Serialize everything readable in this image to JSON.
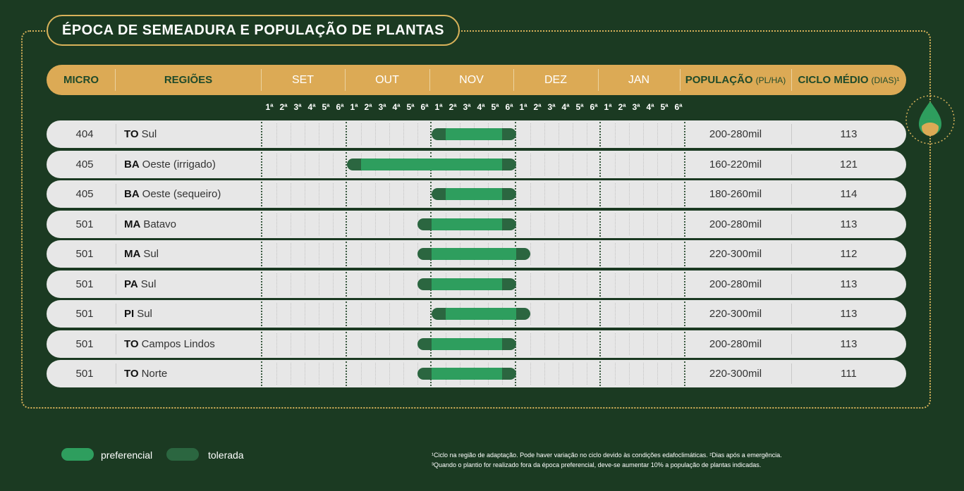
{
  "title": "ÉPOCA DE SEMEADURA E POPULAÇÃO DE PLANTAS",
  "header": {
    "micro": "MICRO",
    "regioes": "REGIÕES",
    "months": [
      "SET",
      "OUT",
      "NOV",
      "DEZ",
      "JAN"
    ],
    "populacao": "POPULAÇÃO",
    "populacao_unit": "(PL/HA)",
    "ciclo": "CICLO MÉDIO",
    "ciclo_unit": "(DIAS)¹"
  },
  "week_labels": [
    "1ª",
    "2ª",
    "3ª",
    "4ª",
    "5ª",
    "6ª"
  ],
  "rows": [
    {
      "micro": "404",
      "state": "TO",
      "region": "Sul",
      "populacao": "200-280mil",
      "ciclo": "113",
      "tolerated": [
        12,
        18
      ],
      "preferred": [
        13,
        17
      ]
    },
    {
      "micro": "405",
      "state": "BA",
      "region": "Oeste (irrigado)",
      "populacao": "160-220mil",
      "ciclo": "121",
      "tolerated": [
        6,
        18
      ],
      "preferred": [
        7,
        17
      ]
    },
    {
      "micro": "405",
      "state": "BA",
      "region": "Oeste (sequeiro)",
      "populacao": "180-260mil",
      "ciclo": "114",
      "tolerated": [
        12,
        18
      ],
      "preferred": [
        13,
        17
      ]
    },
    {
      "micro": "501",
      "state": "MA",
      "region": "Batavo",
      "populacao": "200-280mil",
      "ciclo": "113",
      "tolerated": [
        11,
        18
      ],
      "preferred": [
        12,
        17
      ]
    },
    {
      "micro": "501",
      "state": "MA",
      "region": "Sul",
      "populacao": "220-300mil",
      "ciclo": "112",
      "tolerated": [
        11,
        19
      ],
      "preferred": [
        12,
        18
      ]
    },
    {
      "micro": "501",
      "state": "PA",
      "region": "Sul",
      "populacao": "200-280mil",
      "ciclo": "113",
      "tolerated": [
        11,
        18
      ],
      "preferred": [
        12,
        17
      ]
    },
    {
      "micro": "501",
      "state": "PI",
      "region": "Sul",
      "populacao": "220-300mil",
      "ciclo": "113",
      "tolerated": [
        12,
        19
      ],
      "preferred": [
        13,
        18
      ]
    },
    {
      "micro": "501",
      "state": "TO",
      "region": "Campos Lindos",
      "populacao": "200-280mil",
      "ciclo": "113",
      "tolerated": [
        11,
        18
      ],
      "preferred": [
        12,
        17
      ]
    },
    {
      "micro": "501",
      "state": "TO",
      "region": "Norte",
      "populacao": "220-300mil",
      "ciclo": "111",
      "tolerated": [
        11,
        18
      ],
      "preferred": [
        12,
        17
      ]
    }
  ],
  "legend": {
    "preferencial": "preferencial",
    "tolerada": "tolerada"
  },
  "footnotes": [
    "¹Ciclo na região de adaptação. Pode haver variação no ciclo devido às condições edafoclimáticas. ²Dias após a emergência.",
    "³Quando o plantio for realizado fora da época preferencial, deve-se aumentar 10% a população de plantas indicadas."
  ],
  "colors": {
    "background": "#1b3a22",
    "header": "#dcaa55",
    "preferred": "#2e9e5e",
    "tolerated": "#2b6640",
    "accent": "#d8b25a"
  },
  "icon": "seed-drop-icon"
}
